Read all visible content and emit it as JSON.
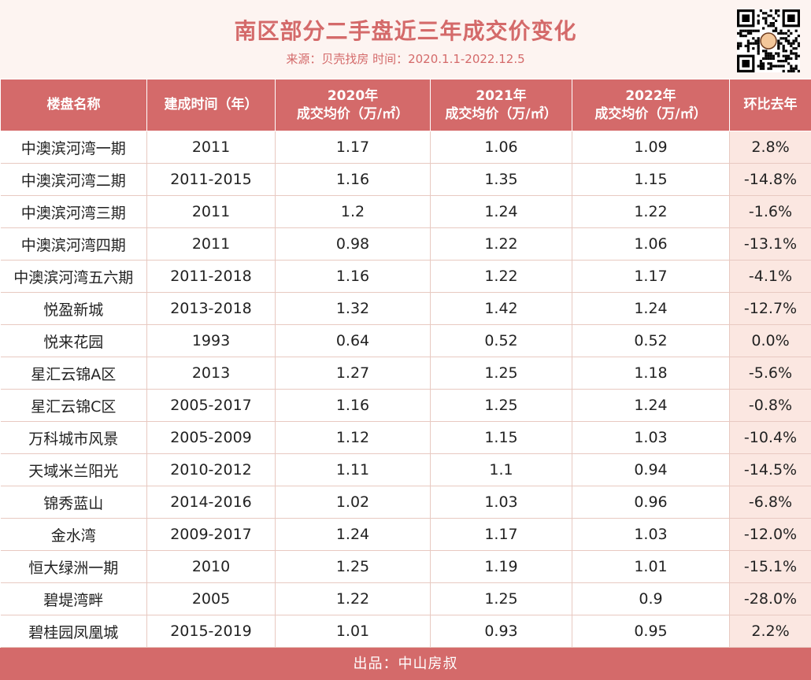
{
  "header": {
    "title": "南区部分二手盘近三年成交价变化",
    "subtitle": "来源：贝壳找房 时间：2020.1.1-2022.12.5"
  },
  "colors": {
    "accent": "#d46a6a",
    "header_bg": "#fdf4f1",
    "last_col_bg": "#fbe7e1"
  },
  "chart_data": {
    "type": "table",
    "columns": [
      {
        "line1": "楼盘名称",
        "line2": ""
      },
      {
        "line1": "建成时间（年）",
        "line2": ""
      },
      {
        "line1": "2020年",
        "line2": "成交均价（万/㎡）"
      },
      {
        "line1": "2021年",
        "line2": "成交均价（万/㎡）"
      },
      {
        "line1": "2022年",
        "line2": "成交均价（万/㎡）"
      },
      {
        "line1": "环比去年",
        "line2": ""
      }
    ],
    "rows": [
      [
        "中澳滨河湾一期",
        "2011",
        "1.17",
        "1.06",
        "1.09",
        "2.8%"
      ],
      [
        "中澳滨河湾二期",
        "2011-2015",
        "1.16",
        "1.35",
        "1.15",
        "-14.8%"
      ],
      [
        "中澳滨河湾三期",
        "2011",
        "1.2",
        "1.24",
        "1.22",
        "-1.6%"
      ],
      [
        "中澳滨河湾四期",
        "2011",
        "0.98",
        "1.22",
        "1.06",
        "-13.1%"
      ],
      [
        "中澳滨河湾五六期",
        "2011-2018",
        "1.16",
        "1.22",
        "1.17",
        "-4.1%"
      ],
      [
        "悦盈新城",
        "2013-2018",
        "1.32",
        "1.42",
        "1.24",
        "-12.7%"
      ],
      [
        "悦来花园",
        "1993",
        "0.64",
        "0.52",
        "0.52",
        "0.0%"
      ],
      [
        "星汇云锦A区",
        "2013",
        "1.27",
        "1.25",
        "1.18",
        "-5.6%"
      ],
      [
        "星汇云锦C区",
        "2005-2017",
        "1.16",
        "1.25",
        "1.24",
        "-0.8%"
      ],
      [
        "万科城市风景",
        "2005-2009",
        "1.12",
        "1.15",
        "1.03",
        "-10.4%"
      ],
      [
        "天域米兰阳光",
        "2010-2012",
        "1.11",
        "1.1",
        "0.94",
        "-14.5%"
      ],
      [
        "锦秀蓝山",
        "2014-2016",
        "1.02",
        "1.03",
        "0.96",
        "-6.8%"
      ],
      [
        "金水湾",
        "2009-2017",
        "1.24",
        "1.17",
        "1.03",
        "-12.0%"
      ],
      [
        "恒大绿洲一期",
        "2010",
        "1.25",
        "1.19",
        "1.01",
        "-15.1%"
      ],
      [
        "碧堤湾畔",
        "2005",
        "1.22",
        "1.25",
        "0.9",
        "-28.0%"
      ],
      [
        "碧桂园凤凰城",
        "2015-2019",
        "1.01",
        "0.93",
        "0.95",
        "2.2%"
      ]
    ]
  },
  "footer": {
    "text": "出品：中山房叔"
  },
  "icons": {
    "qr": "qr-code-icon"
  }
}
